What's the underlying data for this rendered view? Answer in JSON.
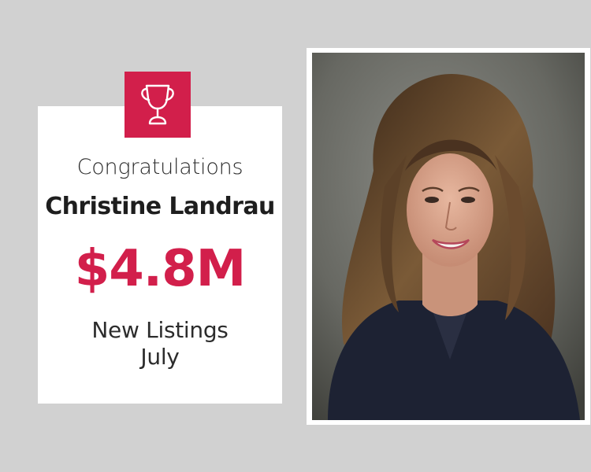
{
  "award": {
    "greeting": "Congratulations",
    "recipient": "Christine Landrau",
    "amount": "$4.8M",
    "category_line1": "New Listings",
    "category_line2": "July",
    "icon": "trophy-icon"
  },
  "colors": {
    "background": "#d1d1d1",
    "accent": "#d21f4b",
    "card": "#ffffff"
  }
}
